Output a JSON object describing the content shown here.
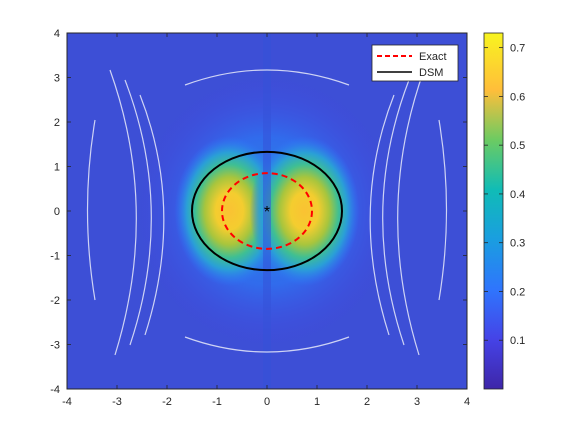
{
  "chart_data": {
    "type": "heatmap",
    "title": "",
    "xlabel": "",
    "ylabel": "",
    "xlim": [
      -4,
      4
    ],
    "ylim": [
      -4,
      4
    ],
    "x_ticks": [
      "-4",
      "-3",
      "-2",
      "-1",
      "0",
      "1",
      "2",
      "3",
      "4"
    ],
    "y_ticks": [
      "4",
      "3",
      "2",
      "1",
      "0",
      "-1",
      "-2",
      "-3",
      "-4"
    ],
    "x_tick_values": [
      -4,
      -3,
      -2,
      -1,
      0,
      1,
      2,
      3,
      4
    ],
    "y_tick_values": [
      4,
      3,
      2,
      1,
      0,
      -1,
      -2,
      -3,
      -4
    ],
    "colorbar": {
      "colormap": "parula",
      "range": [
        0,
        0.73
      ],
      "tick_values": [
        0.1,
        0.2,
        0.3,
        0.4,
        0.5,
        0.6,
        0.7
      ],
      "tick_labels": [
        "0.1",
        "0.2",
        "0.3",
        "0.4",
        "0.5",
        "0.6",
        "0.7"
      ]
    },
    "field_features": {
      "peaks": [
        {
          "x": -0.75,
          "y": 0,
          "value": 0.72
        },
        {
          "x": 0.75,
          "y": 0,
          "value": 0.72
        }
      ],
      "background_value": 0.08
    },
    "curves": [
      {
        "name": "Exact",
        "shape": "ellipse",
        "center": [
          0,
          0
        ],
        "rx": 0.9,
        "ry": 0.85,
        "color": "#ff0000",
        "dash": "dashed"
      },
      {
        "name": "DSM",
        "shape": "ellipse",
        "center": [
          0,
          0
        ],
        "rx": 1.5,
        "ry": 1.33,
        "color": "#000000",
        "dash": "solid"
      }
    ],
    "markers": [
      {
        "symbol": "*",
        "x": 0,
        "y": 0,
        "color": "#000000"
      }
    ],
    "legend": {
      "position": "top-right",
      "entries": [
        {
          "label": "Exact",
          "color": "#ff0000",
          "style": "dashed"
        },
        {
          "label": "DSM",
          "color": "#000000",
          "style": "solid"
        }
      ]
    },
    "grid": false
  }
}
